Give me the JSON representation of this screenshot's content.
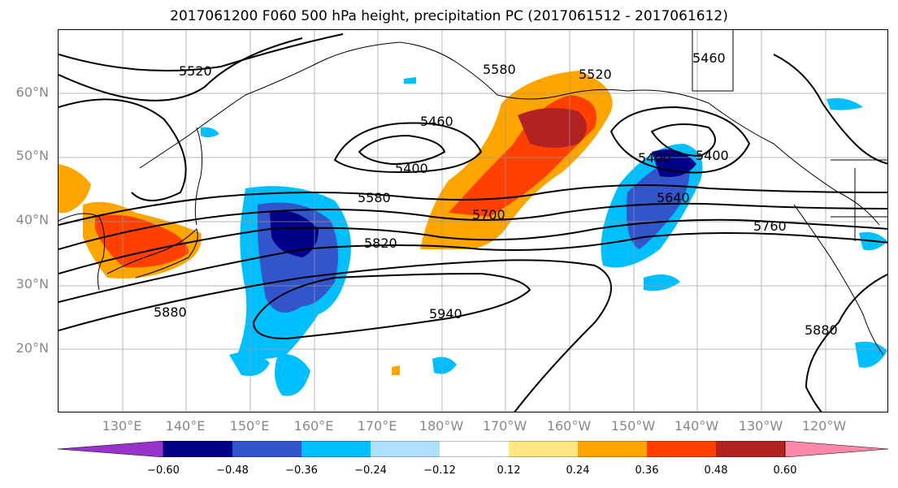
{
  "title": "2017061200 F060 500 hPa height, precipitation PC (2017061512 - 2017061612)",
  "lat_labels": [
    "60°N",
    "50°N",
    "40°N",
    "30°N",
    "20°N"
  ],
  "lon_labels": [
    "130°E",
    "140°E",
    "150°E",
    "160°E",
    "170°E",
    "180°W",
    "170°W",
    "160°W",
    "150°W",
    "140°W",
    "130°W",
    "120°W"
  ],
  "contour_labels": [
    "5520",
    "5580",
    "5520",
    "5460",
    "5460",
    "5400",
    "5400",
    "5400",
    "5580",
    "5700",
    "5640",
    "5820",
    "5760",
    "5880",
    "5940",
    "5880"
  ],
  "colorbar": {
    "ticks": [
      "−0.60",
      "−0.48",
      "−0.36",
      "−0.24",
      "−0.12",
      "0.12",
      "0.24",
      "0.36",
      "0.48",
      "0.60"
    ],
    "colors": [
      "#9933cc",
      "#000088",
      "#3355cc",
      "#00bfff",
      "#b0e0ff",
      "#ffffff",
      "#ffe680",
      "#ffa500",
      "#ff4000",
      "#b22222",
      "#ff88aa"
    ]
  },
  "colors": {
    "gridline": "#999999",
    "contour": "#000000",
    "label_gray": "#888888"
  }
}
